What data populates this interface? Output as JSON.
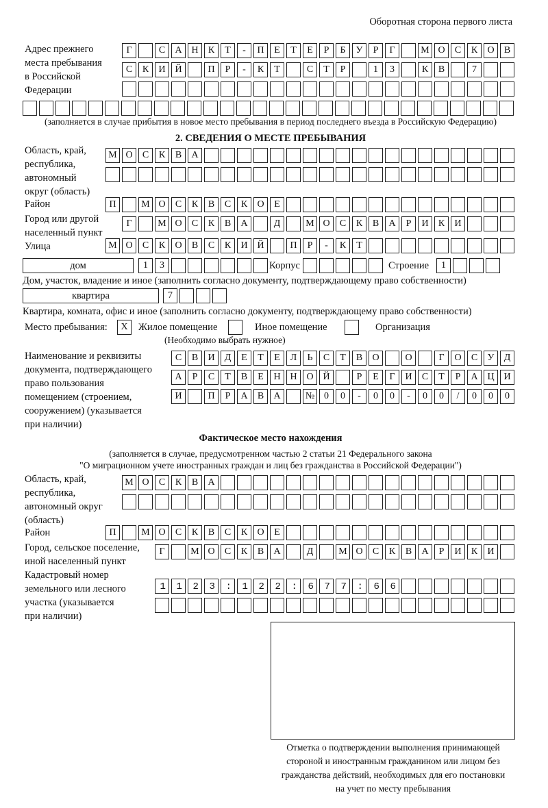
{
  "page_header": "Оборотная сторона первого листа",
  "prev_address": {
    "label": [
      "Адрес прежнего",
      "места пребывания",
      "в Российской",
      "Федерации"
    ],
    "rows": [
      "Г САНКТ-ПЕТЕРБУРГ МОСКОВ",
      "СКИЙ ПР-КТ СТР 13 КВ 7  ",
      "                        ",
      "                              "
    ],
    "note": "(заполняется в случае прибытия в новое место пребывания в период последнего въезда в Российскую Федерацию)"
  },
  "section2": {
    "heading": "2. СВЕДЕНИЯ О МЕСТЕ ПРЕБЫВАНИЯ",
    "region_label": [
      "Область, край,",
      "республика,",
      "автономный",
      "округ (область)"
    ],
    "region_rows": [
      "МОСКВА                   ",
      "                         "
    ],
    "district_label": "Район",
    "district_row": "П МОСКВСКОЕ              ",
    "city_label": [
      "Город или другой",
      "населенный пункт"
    ],
    "city_row": "Г МОСКВА Д МОСКВАРИКИ   ",
    "street_label": "Улица",
    "street_row": "МОСКОВСКИЙ ПР-КТ         ",
    "house_type": "дом",
    "house_row": "13      ",
    "korpus_label": "Корпус",
    "korpus_row": "     ",
    "building_label": "Строение",
    "building_row": "1   ",
    "house_caption": "Дом, участок, владение и иное (заполнить согласно документу, подтверждающему право собственности)",
    "flat_type": "квартира",
    "flat_row": "7   ",
    "flat_caption": "Квартира, комната, офис и иное (заполнить согласно документу, подтверждающему право собственности)",
    "stay_label": "Место пребывания:",
    "stay_options": [
      {
        "label": "Жилое помещение",
        "mark": "X"
      },
      {
        "label": "Иное помещение",
        "mark": ""
      },
      {
        "label": "Организация",
        "mark": ""
      }
    ],
    "stay_hint": "(Необходимо выбрать нужное)",
    "doc_label": [
      "Наименование и реквизиты",
      "документа, подтверждающего",
      "право пользования",
      "помещением (строением,",
      "сооружением) (указывается",
      "при наличии)"
    ],
    "doc_rows": [
      "СВИДЕТЕЛЬСТВО О ГОСУД",
      "АРСТВЕННОЙ РЕГИСТРАЦИ",
      "И ПРАВА №00-00-00/000"
    ]
  },
  "actual": {
    "heading": "Фактическое место нахождения",
    "note": [
      "(заполняется в случае, предусмотренном частью 2 статьи 21 Федерального закона",
      "\"О миграционном учете иностранных граждан и лиц без гражданства в Российской Федерации\")"
    ],
    "region_label": [
      "Область, край,",
      "республика,",
      "автономный округ",
      "(область)"
    ],
    "region_rows": [
      "МОСКВА                  ",
      "                        "
    ],
    "district_label": "Район",
    "district_row": "П МОСКВСКОЕ              ",
    "city_label": [
      "Город, сельское поселение,",
      "иной населенный пункт"
    ],
    "city_row": "Г МОСКВА Д МОСКВАРИКИ ",
    "cadastral_label": [
      "Кадастровый номер",
      "земельного или лесного",
      "участка (указывается",
      "при наличии)"
    ],
    "cadastral_rows": [
      "1123:122:677:66       ",
      "                      "
    ]
  },
  "stamp_caption": [
    "Отметка о подтверждении выполнения принимающей",
    "стороной и иностранным гражданином или лицом без",
    "гражданства действий, необходимых для его постановки",
    "на учет по месту пребывания"
  ]
}
